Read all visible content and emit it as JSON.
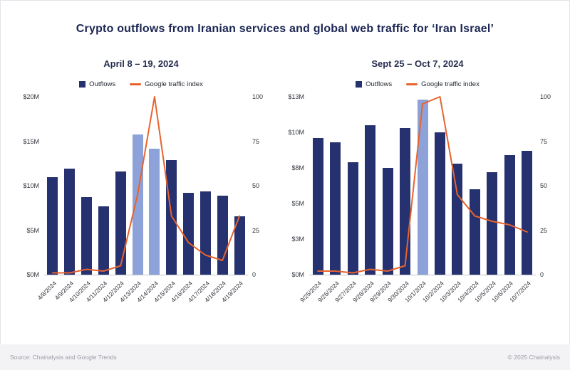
{
  "page": {
    "title": "Crypto outflows from Iranian services and global web traffic for ‘Iran Israel’",
    "source_note": "Source: Chainalysis and Google Trends",
    "copyright": "© 2025 Chainalysis"
  },
  "legend": {
    "outflows_label": "Outflows",
    "traffic_label": "Google traffic index"
  },
  "colors": {
    "bar": "#26316f",
    "bar_highlight": "#8da2d8",
    "line": "#e7632e",
    "title": "#1b2653"
  },
  "chart_data": [
    {
      "type": "bar+line",
      "title": "April 8 – 19, 2024",
      "categories": [
        "4/8/2024",
        "4/9/2024",
        "4/10/2024",
        "4/11/2024",
        "4/12/2024",
        "4/13/2024",
        "4/14/2024",
        "4/15/2024",
        "4/16/2024",
        "4/17/2024",
        "4/18/2024",
        "4/19/2024"
      ],
      "bar_series": {
        "name": "Outflows",
        "unit": "USD millions",
        "values": [
          11.0,
          11.9,
          8.7,
          7.7,
          11.6,
          15.8,
          14.2,
          12.9,
          9.2,
          9.4,
          8.9,
          6.6
        ],
        "highlight_indices": [
          5,
          6
        ]
      },
      "line_series": {
        "name": "Google traffic index",
        "values": [
          1,
          1,
          3,
          2,
          5,
          45,
          100,
          33,
          18,
          11,
          8,
          33
        ]
      },
      "left_axis": {
        "min": 0,
        "max": 20,
        "ticks": [
          {
            "value": 0,
            "label": "$0M"
          },
          {
            "value": 5,
            "label": "$5M"
          },
          {
            "value": 10,
            "label": "$10M"
          },
          {
            "value": 15,
            "label": "$15M"
          },
          {
            "value": 20,
            "label": "$20M"
          }
        ]
      },
      "right_axis": {
        "min": 0,
        "max": 100,
        "ticks": [
          {
            "value": 0,
            "label": "0"
          },
          {
            "value": 25,
            "label": "25"
          },
          {
            "value": 50,
            "label": "50"
          },
          {
            "value": 75,
            "label": "75"
          },
          {
            "value": 100,
            "label": "100"
          }
        ]
      }
    },
    {
      "type": "bar+line",
      "title": "Sept 25 – Oct 7, 2024",
      "categories": [
        "9/25/2024",
        "9/26/2024",
        "9/27/2024",
        "9/28/2024",
        "9/29/2024",
        "9/30/2024",
        "10/1/2024",
        "10/2/2024",
        "10/3/2024",
        "10/4/2024",
        "10/5/2024",
        "10/6/2024",
        "10/7/2024"
      ],
      "bar_series": {
        "name": "Outflows",
        "unit": "USD millions",
        "values": [
          9.6,
          9.3,
          7.9,
          10.5,
          7.5,
          10.3,
          12.3,
          10.0,
          7.8,
          6.0,
          7.2,
          8.4,
          8.7
        ],
        "highlight_indices": [
          6
        ]
      },
      "line_series": {
        "name": "Google traffic index",
        "values": [
          2,
          2,
          1,
          3,
          2,
          5,
          96,
          100,
          45,
          33,
          30,
          28,
          24
        ]
      },
      "left_axis": {
        "min": 0,
        "max": 12.5,
        "ticks": [
          {
            "value": 0,
            "label": "$0M"
          },
          {
            "value": 2.5,
            "label": "$3M"
          },
          {
            "value": 5,
            "label": "$5M"
          },
          {
            "value": 7.5,
            "label": "$8M"
          },
          {
            "value": 10,
            "label": "$10M"
          },
          {
            "value": 12.5,
            "label": "$13M"
          }
        ]
      },
      "right_axis": {
        "min": 0,
        "max": 100,
        "ticks": [
          {
            "value": 0,
            "label": "0"
          },
          {
            "value": 25,
            "label": "25"
          },
          {
            "value": 50,
            "label": "50"
          },
          {
            "value": 75,
            "label": "75"
          },
          {
            "value": 100,
            "label": "100"
          }
        ]
      }
    }
  ]
}
